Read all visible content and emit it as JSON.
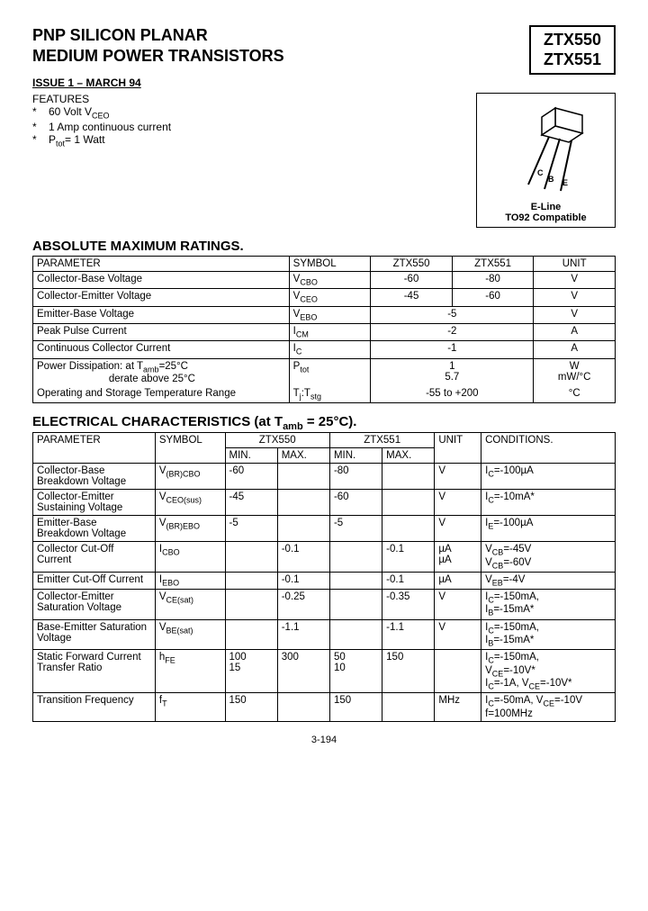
{
  "header": {
    "title_line1": "PNP SILICON PLANAR",
    "title_line2": "MEDIUM POWER TRANSISTORS",
    "part1": "ZTX550",
    "part2": "ZTX551",
    "issue": "ISSUE 1 – MARCH 94"
  },
  "features": {
    "title": "FEATURES",
    "items": [
      "60 Volt V",
      "1 Amp continuous current",
      "P"
    ],
    "item0_sub": "CEO",
    "item2_rest": "= 1 Watt",
    "item2_sub": "tot"
  },
  "package": {
    "line1": "E-Line",
    "line2": "TO92 Compatible",
    "pins": {
      "c": "C",
      "b": "B",
      "e": "E"
    }
  },
  "amr": {
    "title": "ABSOLUTE MAXIMUM RATINGS.",
    "headers": {
      "param": "PARAMETER",
      "symbol": "SYMBOL",
      "p1": "ZTX550",
      "p2": "ZTX551",
      "unit": "UNIT"
    },
    "rows": [
      {
        "param": "Collector-Base Voltage",
        "sym": "V",
        "symsub": "CBO",
        "v1": "-60",
        "v2": "-80",
        "unit": "V"
      },
      {
        "param": "Collector-Emitter Voltage",
        "sym": "V",
        "symsub": "CEO",
        "v1": "-45",
        "v2": "-60",
        "unit": "V"
      },
      {
        "param": "Emitter-Base Voltage",
        "sym": "V",
        "symsub": "EBO",
        "vmerged": "-5",
        "unit": "V"
      },
      {
        "param": "Peak Pulse Current",
        "sym": "I",
        "symsub": "CM",
        "vmerged": "-2",
        "unit": "A"
      },
      {
        "param": "Continuous Collector Current",
        "sym": "I",
        "symsub": "C",
        "vmerged": "-1",
        "unit": "A"
      }
    ],
    "power": {
      "param1": "Power Dissipation: at T",
      "param1sub": "amb",
      "param1rest": "=25°C",
      "param2": "derate above 25°C",
      "sym": "P",
      "symsub": "tot",
      "v1": "1",
      "v2": "5.7",
      "u1": "W",
      "u2": "mW/°C"
    },
    "temp": {
      "param": "Operating and Storage Temperature Range",
      "sym": "T",
      "symsub1": "j",
      "symsep": ":T",
      "symsub2": "stg",
      "v": "-55 to +200",
      "unit": "°C"
    }
  },
  "ec": {
    "title_pre": "ELECTRICAL CHARACTERISTICS (at T",
    "title_sub": "amb",
    "title_post": " = 25°C).",
    "headers": {
      "param": "PARAMETER",
      "symbol": "SYMBOL",
      "p1": "ZTX550",
      "p2": "ZTX551",
      "min": "MIN.",
      "max": "MAX.",
      "unit": "UNIT",
      "cond": "CONDITIONS."
    },
    "rows": [
      {
        "param": "Collector-Base Breakdown Voltage",
        "sym": "V",
        "symsub": "(BR)CBO",
        "min1": "-60",
        "max1": "",
        "min2": "-80",
        "max2": "",
        "unit": "V",
        "cond": "I_C=-100µA"
      },
      {
        "param": "Collector-Emitter Sustaining Voltage",
        "sym": "V",
        "symsub": "CEO(sus)",
        "min1": "-45",
        "max1": "",
        "min2": "-60",
        "max2": "",
        "unit": "V",
        "cond": "I_C=-10mA*"
      },
      {
        "param": "Emitter-Base Breakdown Voltage",
        "sym": "V",
        "symsub": "(BR)EBO",
        "min1": "-5",
        "max1": "",
        "min2": "-5",
        "max2": "",
        "unit": "V",
        "cond": "I_E=-100µA"
      },
      {
        "param": "Collector Cut-Off Current",
        "sym": "I",
        "symsub": "CBO",
        "min1": "",
        "max1": "-0.1",
        "min2": "",
        "max2": "-0.1",
        "unit": "µA\nµA",
        "cond": "V_CB=-45V\nV_CB=-60V"
      },
      {
        "param": "Emitter Cut-Off Current",
        "sym": "I",
        "symsub": "EBO",
        "min1": "",
        "max1": "-0.1",
        "min2": "",
        "max2": "-0.1",
        "unit": "µA",
        "cond": "V_EB=-4V"
      },
      {
        "param": "Collector-Emitter Saturation Voltage",
        "sym": "V",
        "symsub": "CE(sat)",
        "min1": "",
        "max1": "-0.25",
        "min2": "",
        "max2": "-0.35",
        "unit": "V",
        "cond": "I_C=-150mA,\nI_B=-15mA*"
      },
      {
        "param": "Base-Emitter Saturation Voltage",
        "sym": "V",
        "symsub": "BE(sat)",
        "min1": "",
        "max1": "-1.1",
        "min2": "",
        "max2": "-1.1",
        "unit": "V",
        "cond": "I_C=-150mA,\nI_B=-15mA*"
      },
      {
        "param": "Static Forward Current Transfer Ratio",
        "sym": "h",
        "symsub": "FE",
        "min1": "100\n15",
        "max1": "300",
        "min2": "50\n10",
        "max2": "150",
        "unit": "",
        "cond": "I_C=-150mA,\nV_CE=-10V*\nI_C=-1A, V_CE=-10V*"
      },
      {
        "param": "Transition Frequency",
        "sym": "f",
        "symsub": "T",
        "min1": "150",
        "max1": "",
        "min2": "150",
        "max2": "",
        "unit": "MHz",
        "cond": "I_C=-50mA, V_CE=-10V\nf=100MHz"
      }
    ]
  },
  "page": "3-194"
}
